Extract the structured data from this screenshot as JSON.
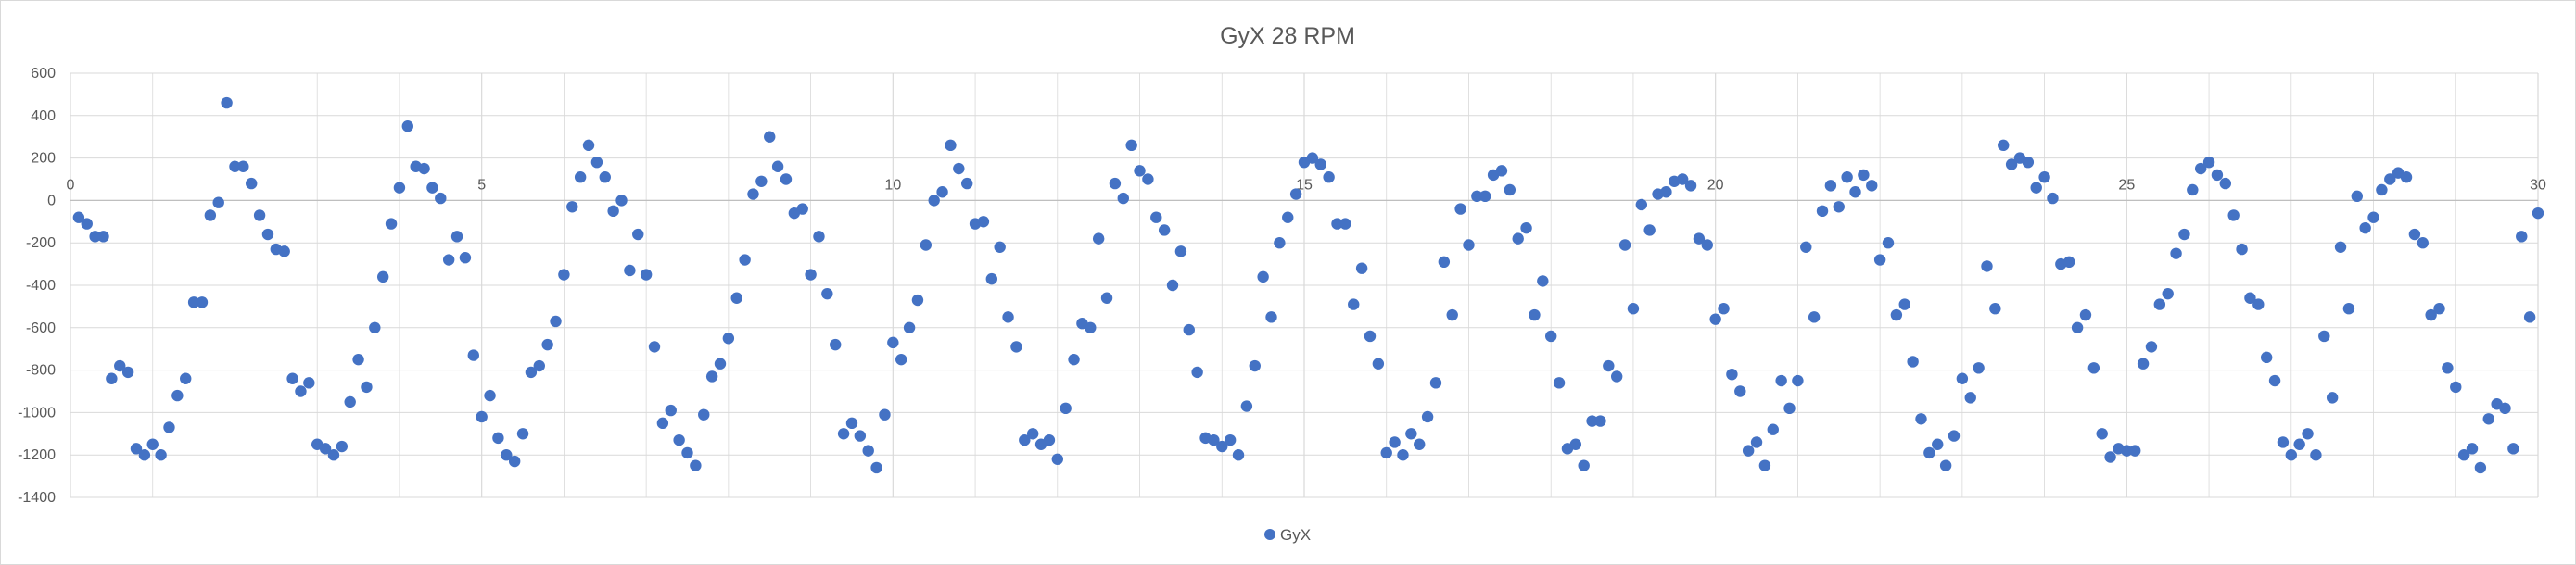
{
  "chart_data": {
    "type": "scatter",
    "title": "GyX 28 RPM",
    "xlabel": "",
    "ylabel": "",
    "xlim": [
      0,
      30
    ],
    "ylim": [
      -1400,
      600
    ],
    "x_ticks": [
      0,
      5,
      10,
      15,
      20,
      25,
      30
    ],
    "x_tick_labels": [
      "0",
      "5",
      "10",
      "15",
      "20",
      "25",
      "30"
    ],
    "y_ticks": [
      600,
      400,
      200,
      0,
      -200,
      -400,
      -600,
      -800,
      -1000,
      -1200,
      -1400
    ],
    "y_tick_labels": [
      "600",
      "400",
      "200",
      "0",
      "-200",
      "-400",
      "-600",
      "-800",
      "-1000",
      "-1200",
      "-1400"
    ],
    "grid": true,
    "legend_position": "bottom",
    "colors": {
      "series": "#4472c4",
      "grid": "#d9d9d9",
      "text": "#595959"
    },
    "series": [
      {
        "name": "GyX",
        "points": [
          [
            0.1,
            -80
          ],
          [
            0.2,
            -110
          ],
          [
            0.3,
            -170
          ],
          [
            0.4,
            -170
          ],
          [
            0.5,
            -840
          ],
          [
            0.6,
            -780
          ],
          [
            0.7,
            -810
          ],
          [
            0.8,
            -1170
          ],
          [
            0.9,
            -1200
          ],
          [
            1.0,
            -1150
          ],
          [
            1.1,
            -1200
          ],
          [
            1.2,
            -1070
          ],
          [
            1.3,
            -920
          ],
          [
            1.4,
            -840
          ],
          [
            1.5,
            -480
          ],
          [
            1.6,
            -480
          ],
          [
            1.7,
            -70
          ],
          [
            1.8,
            -10
          ],
          [
            1.9,
            460
          ],
          [
            2.0,
            160
          ],
          [
            2.1,
            160
          ],
          [
            2.2,
            80
          ],
          [
            2.3,
            -70
          ],
          [
            2.4,
            -160
          ],
          [
            2.5,
            -230
          ],
          [
            2.6,
            -240
          ],
          [
            2.7,
            -840
          ],
          [
            2.8,
            -900
          ],
          [
            2.9,
            -860
          ],
          [
            3.0,
            -1150
          ],
          [
            3.1,
            -1170
          ],
          [
            3.2,
            -1200
          ],
          [
            3.3,
            -1160
          ],
          [
            3.4,
            -950
          ],
          [
            3.5,
            -750
          ],
          [
            3.6,
            -880
          ],
          [
            3.7,
            -600
          ],
          [
            3.8,
            -360
          ],
          [
            3.9,
            -110
          ],
          [
            4.0,
            60
          ],
          [
            4.1,
            350
          ],
          [
            4.2,
            160
          ],
          [
            4.3,
            150
          ],
          [
            4.4,
            60
          ],
          [
            4.5,
            10
          ],
          [
            4.6,
            -280
          ],
          [
            4.7,
            -170
          ],
          [
            4.8,
            -270
          ],
          [
            4.9,
            -730
          ],
          [
            5.0,
            -1020
          ],
          [
            5.1,
            -920
          ],
          [
            5.2,
            -1120
          ],
          [
            5.3,
            -1200
          ],
          [
            5.4,
            -1230
          ],
          [
            5.5,
            -1100
          ],
          [
            5.6,
            -810
          ],
          [
            5.7,
            -780
          ],
          [
            5.8,
            -680
          ],
          [
            5.9,
            -570
          ],
          [
            6.0,
            -350
          ],
          [
            6.1,
            -30
          ],
          [
            6.2,
            110
          ],
          [
            6.3,
            260
          ],
          [
            6.4,
            180
          ],
          [
            6.5,
            110
          ],
          [
            6.6,
            -50
          ],
          [
            6.7,
            0
          ],
          [
            6.8,
            -330
          ],
          [
            6.9,
            -160
          ],
          [
            7.0,
            -350
          ],
          [
            7.1,
            -690
          ],
          [
            7.2,
            -1050
          ],
          [
            7.3,
            -990
          ],
          [
            7.4,
            -1130
          ],
          [
            7.5,
            -1190
          ],
          [
            7.6,
            -1250
          ],
          [
            7.7,
            -1010
          ],
          [
            7.8,
            -830
          ],
          [
            7.9,
            -770
          ],
          [
            8.0,
            -650
          ],
          [
            8.1,
            -460
          ],
          [
            8.2,
            -280
          ],
          [
            8.3,
            30
          ],
          [
            8.4,
            90
          ],
          [
            8.5,
            300
          ],
          [
            8.6,
            160
          ],
          [
            8.7,
            100
          ],
          [
            8.8,
            -60
          ],
          [
            8.9,
            -40
          ],
          [
            9.0,
            -350
          ],
          [
            9.1,
            -170
          ],
          [
            9.2,
            -440
          ],
          [
            9.3,
            -680
          ],
          [
            9.4,
            -1100
          ],
          [
            9.5,
            -1050
          ],
          [
            9.6,
            -1110
          ],
          [
            9.7,
            -1180
          ],
          [
            9.8,
            -1260
          ],
          [
            9.9,
            -1010
          ],
          [
            10.0,
            -670
          ],
          [
            10.1,
            -750
          ],
          [
            10.2,
            -600
          ],
          [
            10.3,
            -470
          ],
          [
            10.4,
            -210
          ],
          [
            10.5,
            0
          ],
          [
            10.6,
            40
          ],
          [
            10.7,
            260
          ],
          [
            10.8,
            150
          ],
          [
            10.9,
            80
          ],
          [
            11.0,
            -110
          ],
          [
            11.1,
            -100
          ],
          [
            11.2,
            -370
          ],
          [
            11.3,
            -220
          ],
          [
            11.4,
            -550
          ],
          [
            11.5,
            -690
          ],
          [
            11.6,
            -1130
          ],
          [
            11.7,
            -1100
          ],
          [
            11.8,
            -1150
          ],
          [
            11.9,
            -1130
          ],
          [
            12.0,
            -1220
          ],
          [
            12.1,
            -980
          ],
          [
            12.2,
            -750
          ],
          [
            12.3,
            -580
          ],
          [
            12.4,
            -600
          ],
          [
            12.5,
            -180
          ],
          [
            12.6,
            -460
          ],
          [
            12.7,
            80
          ],
          [
            12.8,
            10
          ],
          [
            12.9,
            260
          ],
          [
            13.0,
            140
          ],
          [
            13.1,
            100
          ],
          [
            13.2,
            -80
          ],
          [
            13.3,
            -140
          ],
          [
            13.4,
            -400
          ],
          [
            13.5,
            -240
          ],
          [
            13.6,
            -610
          ],
          [
            13.7,
            -810
          ],
          [
            13.8,
            -1120
          ],
          [
            13.9,
            -1130
          ],
          [
            14.0,
            -1160
          ],
          [
            14.1,
            -1130
          ],
          [
            14.2,
            -1200
          ],
          [
            14.3,
            -970
          ],
          [
            14.4,
            -780
          ],
          [
            14.5,
            -360
          ],
          [
            14.6,
            -550
          ],
          [
            14.7,
            -200
          ],
          [
            14.8,
            -80
          ],
          [
            14.9,
            30
          ],
          [
            15.0,
            180
          ],
          [
            15.1,
            200
          ],
          [
            15.2,
            170
          ],
          [
            15.3,
            110
          ],
          [
            15.4,
            -110
          ],
          [
            15.5,
            -110
          ],
          [
            15.6,
            -490
          ],
          [
            15.7,
            -320
          ],
          [
            15.8,
            -640
          ],
          [
            15.9,
            -770
          ],
          [
            16.0,
            -1190
          ],
          [
            16.1,
            -1140
          ],
          [
            16.2,
            -1200
          ],
          [
            16.3,
            -1100
          ],
          [
            16.4,
            -1150
          ],
          [
            16.5,
            -1020
          ],
          [
            16.6,
            -860
          ],
          [
            16.7,
            -290
          ],
          [
            16.8,
            -540
          ],
          [
            16.9,
            -40
          ],
          [
            17.0,
            -210
          ],
          [
            17.1,
            20
          ],
          [
            17.2,
            20
          ],
          [
            17.3,
            120
          ],
          [
            17.4,
            140
          ],
          [
            17.5,
            50
          ],
          [
            17.6,
            -180
          ],
          [
            17.7,
            -130
          ],
          [
            17.8,
            -540
          ],
          [
            17.9,
            -380
          ],
          [
            18.0,
            -640
          ],
          [
            18.1,
            -860
          ],
          [
            18.2,
            -1170
          ],
          [
            18.3,
            -1150
          ],
          [
            18.4,
            -1250
          ],
          [
            18.5,
            -1040
          ],
          [
            18.6,
            -1040
          ],
          [
            18.7,
            -780
          ],
          [
            18.8,
            -830
          ],
          [
            18.9,
            -210
          ],
          [
            19.0,
            -510
          ],
          [
            19.1,
            -20
          ],
          [
            19.2,
            -140
          ],
          [
            19.3,
            30
          ],
          [
            19.4,
            40
          ],
          [
            19.5,
            90
          ],
          [
            19.6,
            100
          ],
          [
            19.7,
            70
          ],
          [
            19.8,
            -180
          ],
          [
            19.9,
            -210
          ],
          [
            20.0,
            -560
          ],
          [
            20.1,
            -510
          ],
          [
            20.2,
            -820
          ],
          [
            20.3,
            -900
          ],
          [
            20.4,
            -1180
          ],
          [
            20.5,
            -1140
          ],
          [
            20.6,
            -1250
          ],
          [
            20.7,
            -1080
          ],
          [
            20.8,
            -850
          ],
          [
            20.9,
            -980
          ],
          [
            21.0,
            -850
          ],
          [
            21.1,
            -220
          ],
          [
            21.2,
            -550
          ],
          [
            21.3,
            -50
          ],
          [
            21.4,
            70
          ],
          [
            21.5,
            -30
          ],
          [
            21.6,
            110
          ],
          [
            21.7,
            40
          ],
          [
            21.8,
            120
          ],
          [
            21.9,
            70
          ],
          [
            22.0,
            -280
          ],
          [
            22.1,
            -200
          ],
          [
            22.2,
            -540
          ],
          [
            22.3,
            -490
          ],
          [
            22.4,
            -760
          ],
          [
            22.5,
            -1030
          ],
          [
            22.6,
            -1190
          ],
          [
            22.7,
            -1150
          ],
          [
            22.8,
            -1250
          ],
          [
            22.9,
            -1110
          ],
          [
            23.0,
            -840
          ],
          [
            23.1,
            -930
          ],
          [
            23.2,
            -790
          ],
          [
            23.3,
            -310
          ],
          [
            23.4,
            -510
          ],
          [
            23.5,
            260
          ],
          [
            23.6,
            170
          ],
          [
            23.7,
            200
          ],
          [
            23.8,
            180
          ],
          [
            23.9,
            60
          ],
          [
            24.0,
            110
          ],
          [
            24.1,
            10
          ],
          [
            24.2,
            -300
          ],
          [
            24.3,
            -290
          ],
          [
            24.4,
            -600
          ],
          [
            24.5,
            -540
          ],
          [
            24.6,
            -790
          ],
          [
            24.7,
            -1100
          ],
          [
            24.8,
            -1210
          ],
          [
            24.9,
            -1170
          ],
          [
            25.0,
            -1180
          ],
          [
            25.1,
            -1180
          ],
          [
            25.2,
            -770
          ],
          [
            25.3,
            -690
          ],
          [
            25.4,
            -490
          ],
          [
            25.5,
            -440
          ],
          [
            25.6,
            -250
          ],
          [
            25.7,
            -160
          ],
          [
            25.8,
            50
          ],
          [
            25.9,
            150
          ],
          [
            26.0,
            180
          ],
          [
            26.1,
            120
          ],
          [
            26.2,
            80
          ],
          [
            26.3,
            -70
          ],
          [
            26.4,
            -230
          ],
          [
            26.5,
            -460
          ],
          [
            26.6,
            -490
          ],
          [
            26.7,
            -740
          ],
          [
            26.8,
            -850
          ],
          [
            26.9,
            -1140
          ],
          [
            27.0,
            -1200
          ],
          [
            27.1,
            -1150
          ],
          [
            27.2,
            -1100
          ],
          [
            27.3,
            -1200
          ],
          [
            27.4,
            -640
          ],
          [
            27.5,
            -930
          ],
          [
            27.6,
            -220
          ],
          [
            27.7,
            -510
          ],
          [
            27.8,
            20
          ],
          [
            27.9,
            -130
          ],
          [
            28.0,
            -80
          ],
          [
            28.1,
            50
          ],
          [
            28.2,
            100
          ],
          [
            28.3,
            130
          ],
          [
            28.4,
            110
          ],
          [
            28.5,
            -160
          ],
          [
            28.6,
            -200
          ],
          [
            28.7,
            -540
          ],
          [
            28.8,
            -510
          ],
          [
            28.9,
            -790
          ],
          [
            29.0,
            -880
          ],
          [
            29.1,
            -1200
          ],
          [
            29.2,
            -1170
          ],
          [
            29.3,
            -1260
          ],
          [
            29.4,
            -1030
          ],
          [
            29.5,
            -960
          ],
          [
            29.6,
            -980
          ],
          [
            29.7,
            -1170
          ],
          [
            29.8,
            -170
          ],
          [
            29.9,
            -550
          ],
          [
            30.0,
            -60
          ]
        ]
      }
    ]
  }
}
